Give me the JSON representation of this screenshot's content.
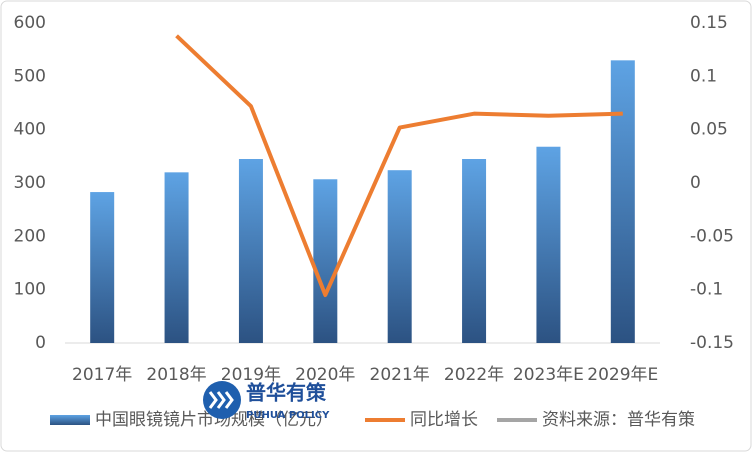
{
  "chart_data": {
    "type": "bar",
    "categories": [
      "2017年",
      "2018年",
      "2019年",
      "2020年",
      "2021年",
      "2022年",
      "2023年E",
      "2029年E"
    ],
    "series": [
      {
        "name": "中国眼镜镜片市场规模（亿元）",
        "color": "#3f7fc0",
        "values": [
          283,
          320,
          345,
          307,
          324,
          345,
          368,
          530
        ]
      },
      {
        "name": "同比增长",
        "color": "#ed7d31",
        "axis": "y2",
        "type": "line",
        "values": [
          null,
          0.138,
          0.072,
          -0.105,
          0.052,
          0.065,
          0.063,
          0.065
        ]
      }
    ],
    "source": {
      "name": "资料来源：普华有策",
      "color": "#a5a5a5"
    },
    "ylim": [
      0,
      600
    ],
    "yticks": [
      0,
      100,
      200,
      300,
      400,
      500,
      600
    ],
    "y2lim": [
      -0.15,
      0.15
    ],
    "y2ticks": [
      -0.15,
      -0.1,
      -0.05,
      0,
      0.05,
      0.1,
      0.15
    ],
    "grid": false,
    "legend": "bottom",
    "watermark": {
      "title": "普华有策",
      "subtitle": "PUHUA POLICY"
    }
  }
}
